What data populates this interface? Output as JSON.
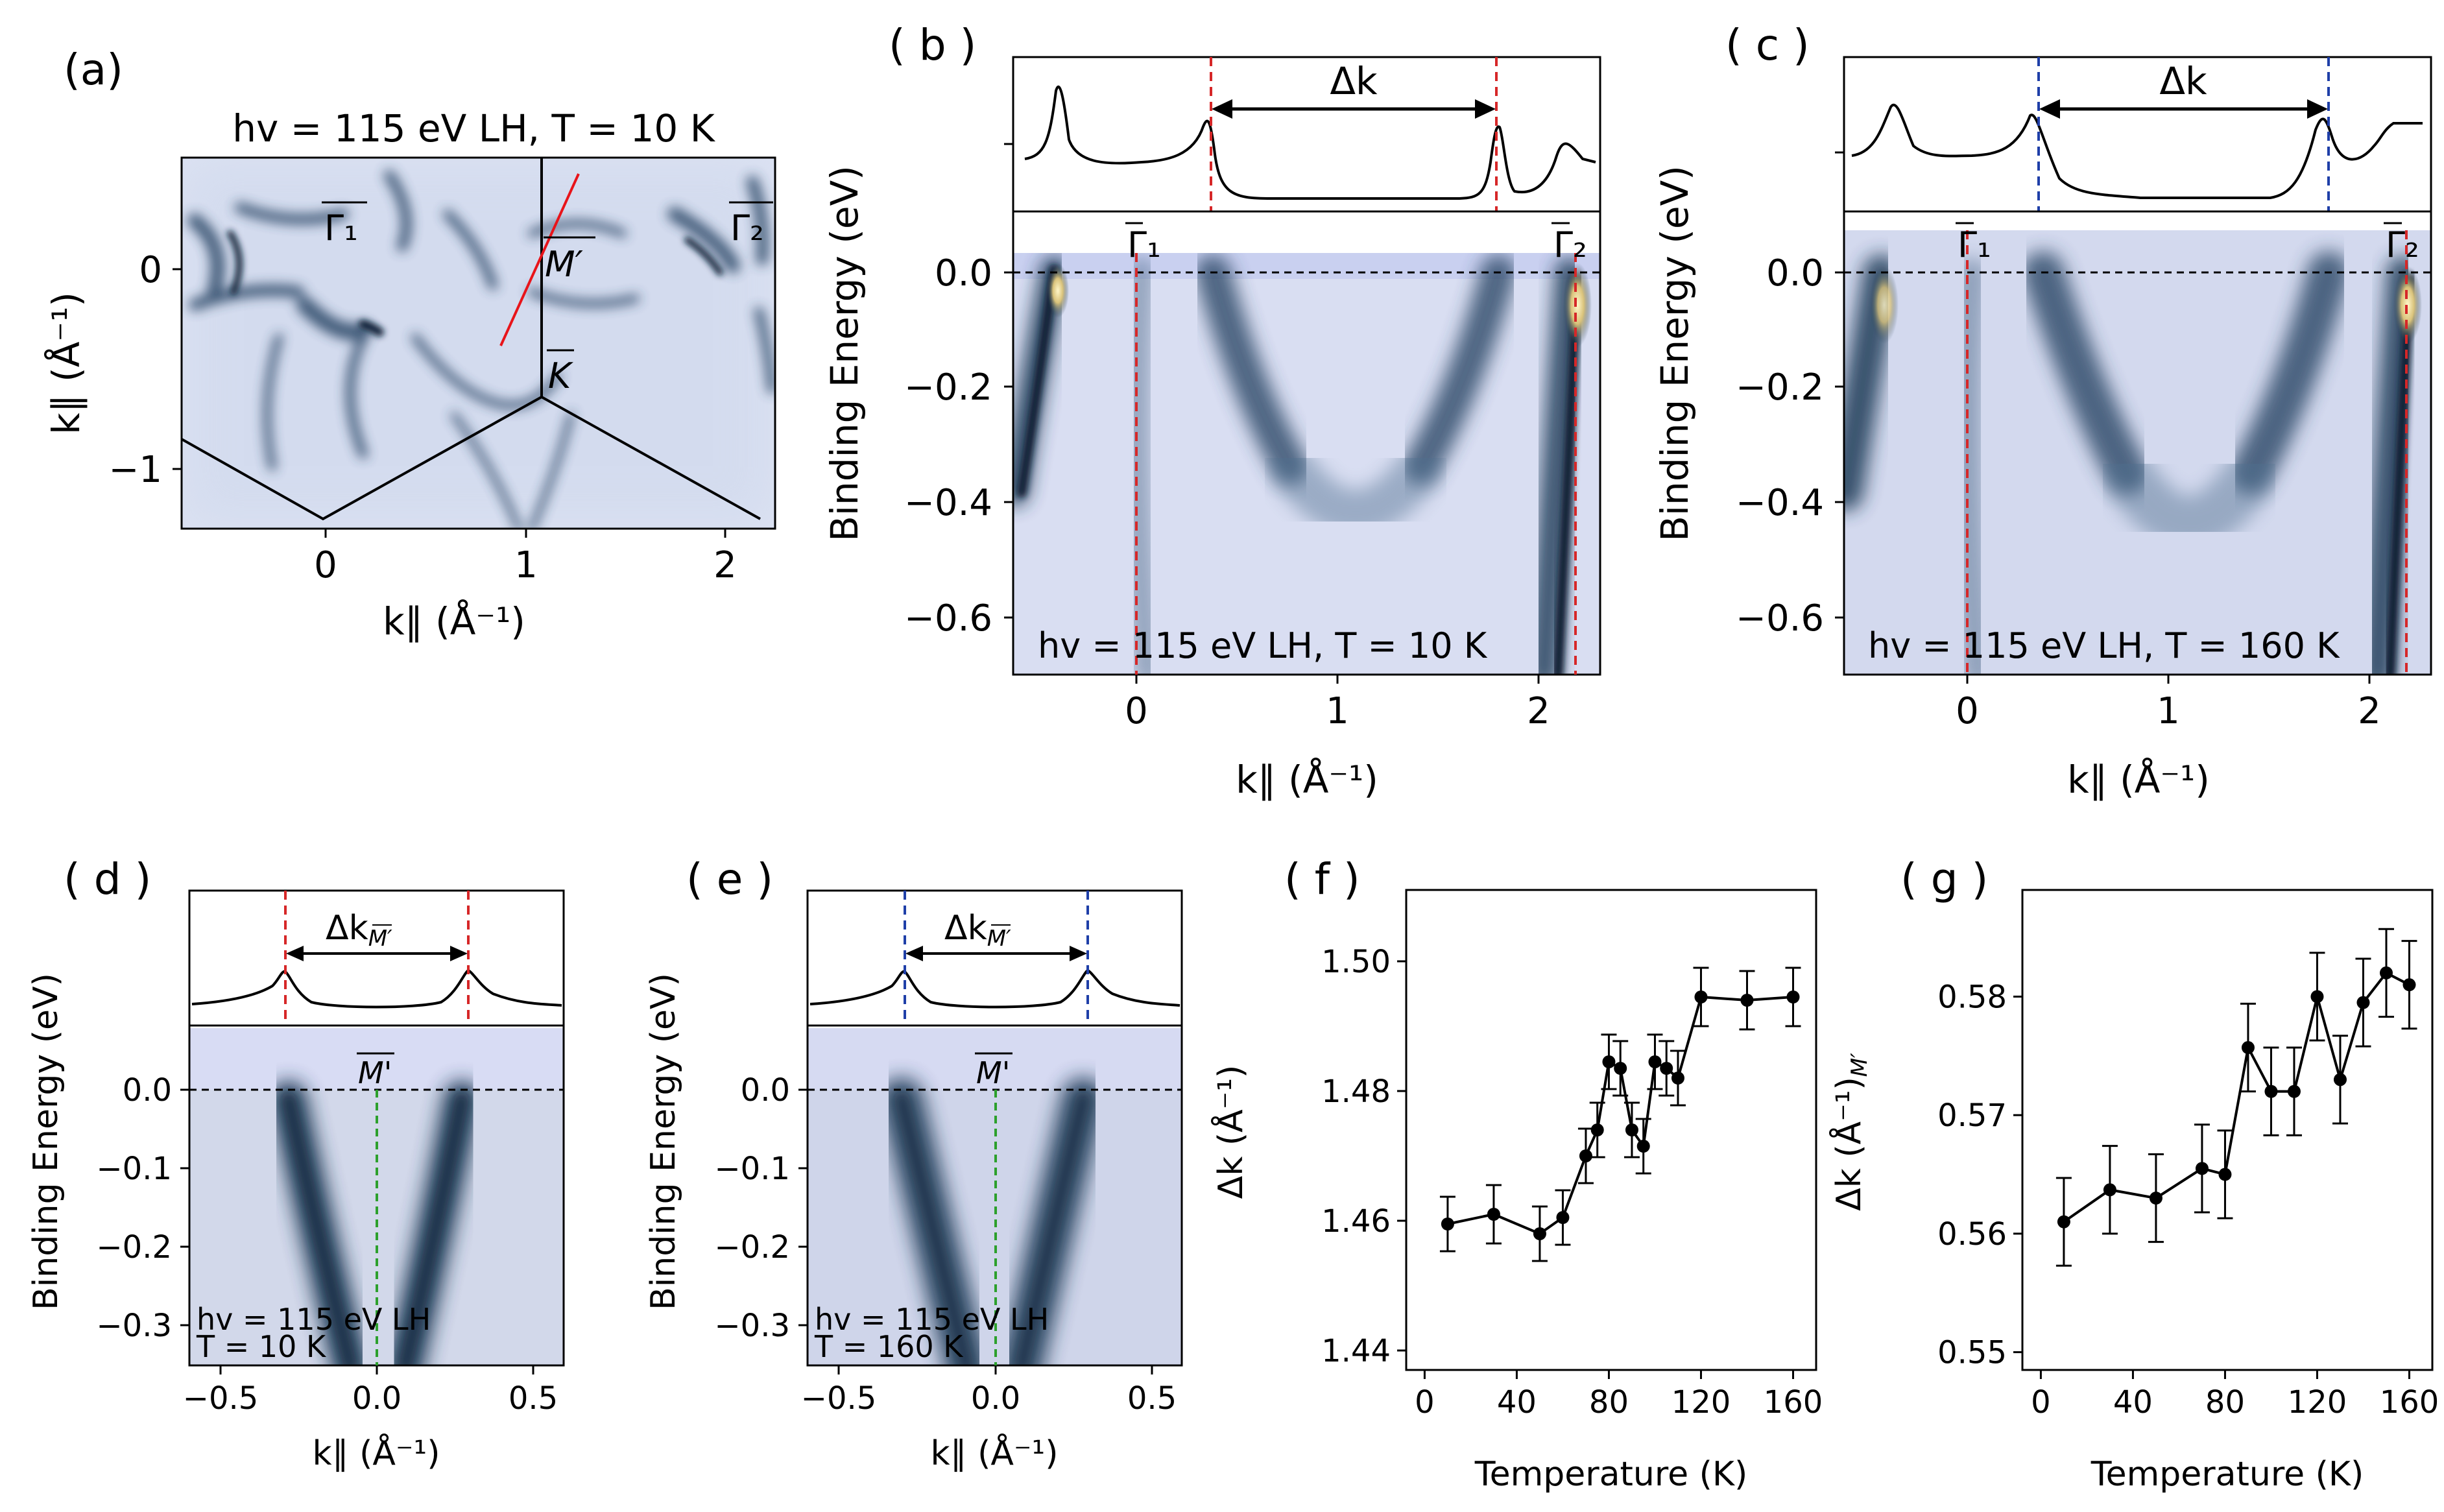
{
  "panels": {
    "a": {
      "label": "(a)",
      "title": "hv = 115 eV LH, T = 10 K",
      "xlabel": "k∥ (Å⁻¹)",
      "ylabel": "k∥ (Å⁻¹)",
      "xticks": [
        "0",
        "1",
        "2"
      ],
      "yticks": [
        "0",
        "−1"
      ],
      "points": {
        "gamma1": "Γ₁",
        "gamma2": "Γ₂",
        "mprime": "M′",
        "k": "K"
      }
    },
    "b": {
      "label": "( b )",
      "ylabel": "Binding Energy (eV)",
      "xlabel": "k∥ (Å⁻¹)",
      "xticks": [
        "0",
        "1",
        "2"
      ],
      "yticks": [
        "0.0",
        "−0.2",
        "−0.4",
        "−0.6"
      ],
      "annotation": "hv = 115 eV LH, T = 10 K",
      "delta_label": "Δk",
      "points": {
        "gamma1": "Γ₁",
        "gamma2": "Γ₂"
      }
    },
    "c": {
      "label": "( c )",
      "ylabel": "Binding Energy (eV)",
      "xlabel": "k∥ (Å⁻¹)",
      "xticks": [
        "0",
        "1",
        "2"
      ],
      "yticks": [
        "0.0",
        "−0.2",
        "−0.4",
        "−0.6"
      ],
      "annotation": "hv = 115 eV LH, T = 160 K",
      "delta_label": "Δk",
      "points": {
        "gamma1": "Γ₁",
        "gamma2": "Γ₂"
      }
    },
    "d": {
      "label": "( d )",
      "ylabel": "Binding Energy (eV)",
      "xlabel": "k∥ (Å⁻¹)",
      "xticks": [
        "−0.5",
        "0.0",
        "0.5"
      ],
      "yticks": [
        "0.0",
        "−0.1",
        "−0.2",
        "−0.3"
      ],
      "annotation_line1": "hv = 115 eV LH",
      "annotation_line2": "T = 10 K",
      "delta_label": "Δk",
      "delta_sub": "M′",
      "point": "M'"
    },
    "e": {
      "label": "( e )",
      "ylabel": "Binding Energy (eV)",
      "xlabel": "k∥ (Å⁻¹)",
      "xticks": [
        "−0.5",
        "0.0",
        "0.5"
      ],
      "yticks": [
        "0.0",
        "−0.1",
        "−0.2",
        "−0.3"
      ],
      "annotation_line1": "hv = 115 eV LH",
      "annotation_line2": "T = 160 K",
      "delta_label": "Δk",
      "delta_sub": "M′",
      "point": "M'"
    },
    "f": {
      "label": "( f )"
    },
    "g": {
      "label": "( g )"
    }
  },
  "colors": {
    "red_dash": "#d62728",
    "blue_dash": "#1f3fa8",
    "green_dash": "#2ca02c",
    "band_dark": "#1a3550",
    "map_bg": "#e4e8f6"
  },
  "chart_data": [
    {
      "id": "f",
      "type": "line",
      "xlabel": "Temperature (K)",
      "ylabel": "Δk (Å⁻¹)",
      "xlim": [
        -8,
        170
      ],
      "ylim": [
        1.437,
        1.511
      ],
      "xticks": [
        0,
        40,
        80,
        120,
        160
      ],
      "yticks": [
        1.44,
        1.46,
        1.48,
        1.5
      ],
      "ytick_labels": [
        "1.44",
        "1.46",
        "1.48",
        "1.50"
      ],
      "x": [
        10,
        30,
        50,
        60,
        70,
        75,
        80,
        85,
        90,
        95,
        100,
        105,
        110,
        120,
        140,
        160
      ],
      "y": [
        1.4595,
        1.461,
        1.458,
        1.4605,
        1.47,
        1.474,
        1.4845,
        1.4835,
        1.474,
        1.4715,
        1.4845,
        1.4835,
        1.482,
        1.4945,
        1.494,
        1.4945
      ],
      "err": [
        0.0042,
        0.0045,
        0.0042,
        0.0042,
        0.0042,
        0.0042,
        0.0042,
        0.0042,
        0.0042,
        0.0042,
        0.0042,
        0.0042,
        0.0042,
        0.0045,
        0.0045,
        0.0045
      ]
    },
    {
      "id": "g",
      "type": "line",
      "xlabel": "Temperature (K)",
      "ylabel": "Δk (Å⁻¹)",
      "ylabel_sub": "M′",
      "xlim": [
        -8,
        170
      ],
      "ylim": [
        0.5485,
        0.589
      ],
      "xticks": [
        0,
        40,
        80,
        120,
        160
      ],
      "yticks": [
        0.55,
        0.56,
        0.57,
        0.58
      ],
      "ytick_labels": [
        "0.55",
        "0.56",
        "0.57",
        "0.58"
      ],
      "x": [
        10,
        30,
        50,
        70,
        80,
        90,
        100,
        110,
        120,
        130,
        140,
        150,
        160
      ],
      "y": [
        0.561,
        0.5637,
        0.563,
        0.5655,
        0.565,
        0.5757,
        0.572,
        0.572,
        0.58,
        0.573,
        0.5795,
        0.582,
        0.581
      ],
      "err": [
        0.0037,
        0.0037,
        0.0037,
        0.0037,
        0.0037,
        0.0037,
        0.0037,
        0.0037,
        0.0037,
        0.0037,
        0.0037,
        0.0037,
        0.0037
      ]
    }
  ]
}
